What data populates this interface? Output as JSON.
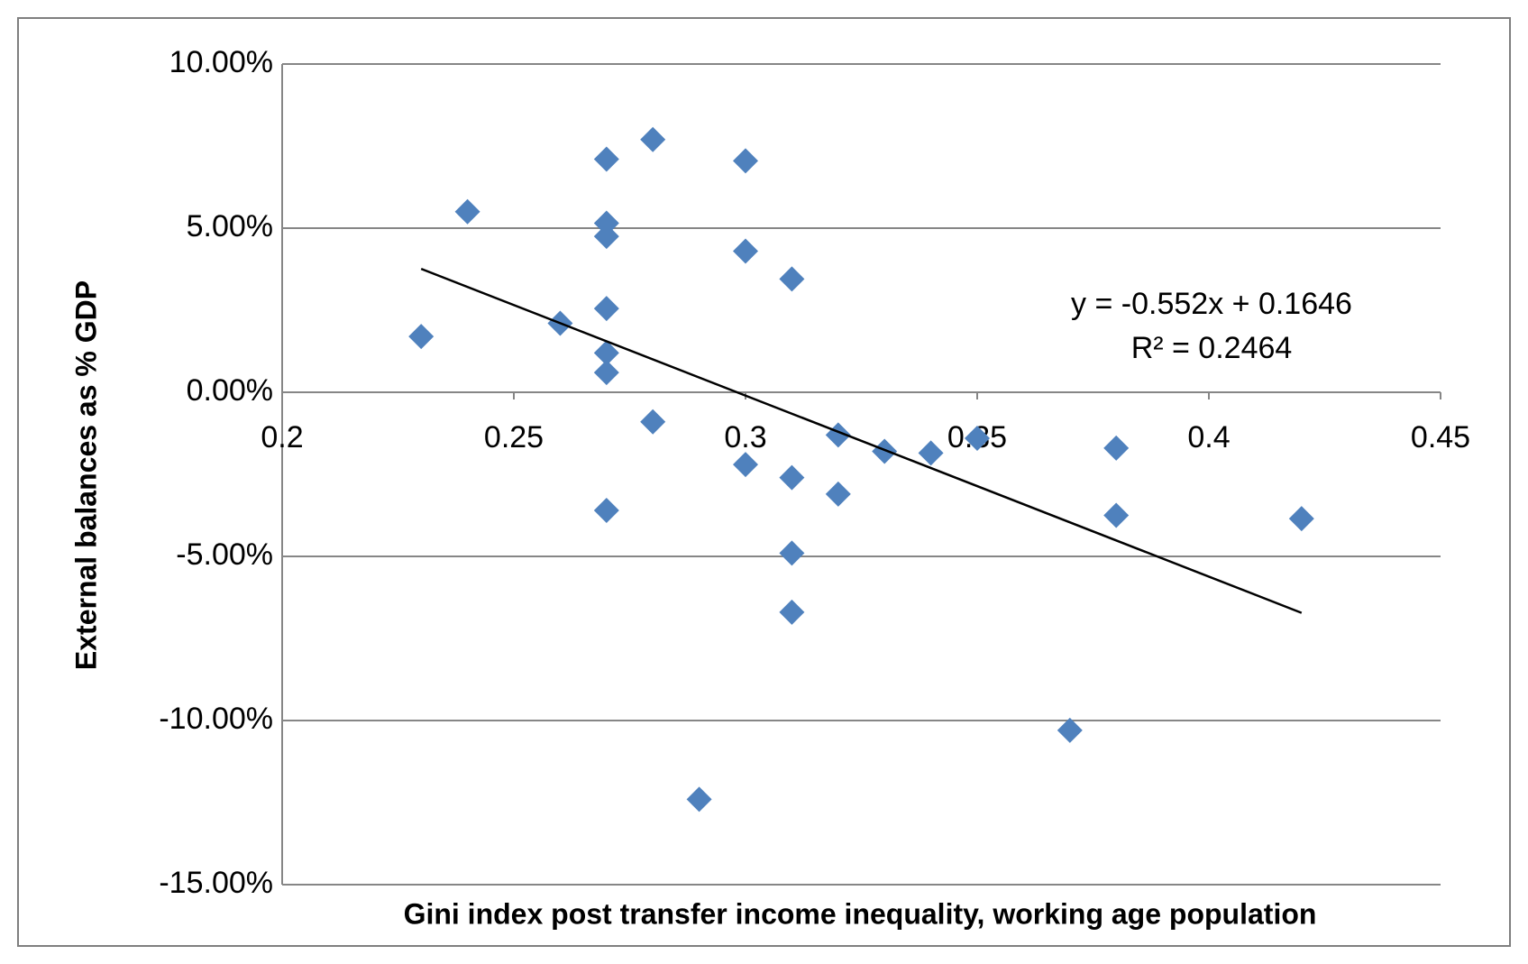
{
  "chart_data": {
    "type": "scatter",
    "x_label": "Gini index post transfer income inequality, working age population",
    "y_label": "External balances as % GDP",
    "annotations": [
      "y = -0.552x + 0.1646",
      "R² = 0.2464"
    ],
    "xlim": [
      0.2,
      0.45
    ],
    "xticks": [
      0.2,
      0.25,
      0.3,
      0.35,
      0.4,
      0.45
    ],
    "ylim": [
      -0.15,
      0.1
    ],
    "yticks": [
      {
        "value": -0.15,
        "label": "-15.00%"
      },
      {
        "value": -0.1,
        "label": "-10.00%"
      },
      {
        "value": -0.05,
        "label": "-5.00%"
      },
      {
        "value": 0,
        "label": "0.00%"
      },
      {
        "value": 0.05,
        "label": "5.00%"
      },
      {
        "value": 0.1,
        "label": "10.00%"
      }
    ],
    "grid": true,
    "series": [
      {
        "color": "#4f81bd",
        "x": [
          0.23,
          0.24,
          0.26,
          0.27,
          0.27,
          0.27,
          0.27,
          0.27,
          0.27,
          0.27,
          0.28,
          0.28,
          0.29,
          0.3,
          0.3,
          0.3,
          0.31,
          0.31,
          0.31,
          0.31,
          0.32,
          0.32,
          0.33,
          0.34,
          0.35,
          0.37,
          0.38,
          0.38,
          0.42
        ],
        "values": [
          0.017,
          0.055,
          0.021,
          0.071,
          0.0515,
          0.0475,
          0.0255,
          0.012,
          0.006,
          -0.036,
          0.077,
          -0.009,
          -0.124,
          0.0705,
          0.043,
          -0.022,
          0.0345,
          -0.026,
          -0.049,
          -0.067,
          -0.013,
          -0.031,
          -0.018,
          -0.0185,
          -0.014,
          -0.103,
          -0.017,
          -0.0375,
          -0.0385
        ]
      }
    ],
    "trendline": {
      "color": "#000000",
      "x": [
        0.23,
        0.42
      ],
      "values": [
        0.0376,
        -0.0672
      ]
    }
  }
}
